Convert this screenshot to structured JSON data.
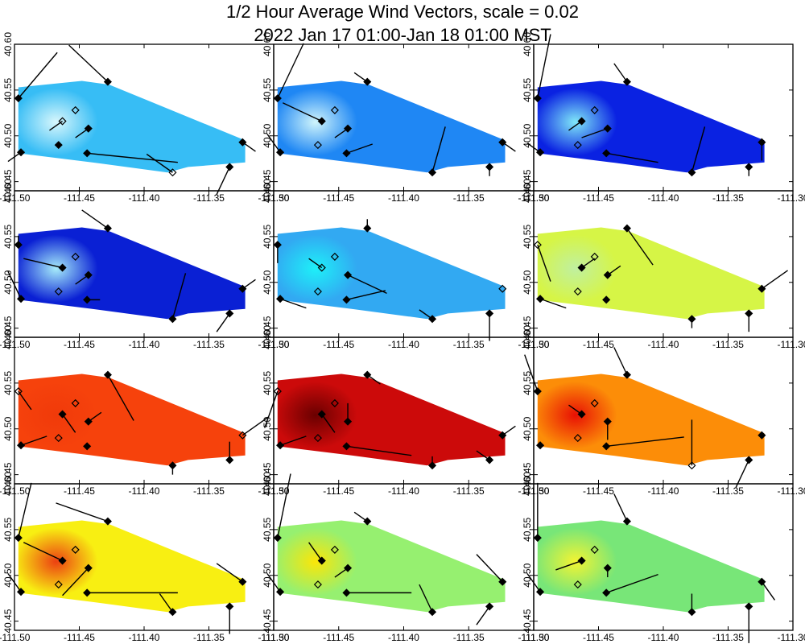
{
  "title": {
    "line1": "1/2 Hour Average Wind Vectors, scale =  0.02",
    "line2": "2022 Jan 17 01:00-Jan 18 01:00 MST"
  },
  "chart_data": {
    "type": "small-multiples-map",
    "rows": 4,
    "cols": 3,
    "xlim": [
      -111.5,
      -111.3
    ],
    "ylim": [
      40.44,
      40.6
    ],
    "xticks": [
      -111.5,
      -111.45,
      -111.4,
      -111.35,
      -111.3
    ],
    "xtick_labels": [
      "-111.50",
      "-111.45",
      "-111.40",
      "-111.35",
      "-111.30"
    ],
    "yticks": [
      40.45,
      40.5,
      40.55,
      40.6
    ],
    "ytick_labels": [
      "40.45",
      "40.50",
      "40.55",
      "40.60"
    ],
    "stations": [
      {
        "lon": -111.497,
        "lat": 40.541
      },
      {
        "lon": -111.495,
        "lat": 40.482
      },
      {
        "lon": -111.463,
        "lat": 40.516
      },
      {
        "lon": -111.466,
        "lat": 40.49
      },
      {
        "lon": -111.453,
        "lat": 40.528
      },
      {
        "lon": -111.443,
        "lat": 40.508
      },
      {
        "lon": -111.444,
        "lat": 40.481
      },
      {
        "lon": -111.428,
        "lat": 40.559
      },
      {
        "lon": -111.378,
        "lat": 40.46
      },
      {
        "lon": -111.334,
        "lat": 40.466
      },
      {
        "lon": -111.324,
        "lat": 40.493
      }
    ],
    "panels": [
      {
        "fill": "#37bdf5",
        "hot": "#d8f7fc",
        "filled": [
          1,
          1,
          0,
          1,
          0,
          1,
          1,
          1,
          0,
          1,
          1
        ],
        "vectors": [
          [
            0.03,
            0.05
          ],
          [
            -0.01,
            -0.01
          ],
          [
            -0.01,
            -0.01
          ],
          [
            0,
            0
          ],
          [
            0,
            0
          ],
          [
            -0.01,
            -0.01
          ],
          [
            0.07,
            -0.01
          ],
          [
            -0.03,
            0.04
          ],
          [
            -0.02,
            0.02
          ],
          [
            -0.01,
            -0.03
          ],
          [
            0.01,
            -0.01
          ]
        ]
      },
      {
        "fill": "#1f87f4",
        "hot": "#d0f5fb",
        "filled": [
          1,
          1,
          1,
          0,
          0,
          1,
          1,
          1,
          1,
          1,
          1
        ],
        "vectors": [
          [
            0.02,
            0.06
          ],
          [
            -0.01,
            0.02
          ],
          [
            -0.03,
            0.02
          ],
          [
            0,
            0
          ],
          [
            0,
            0
          ],
          [
            -0.01,
            -0.01
          ],
          [
            0.02,
            0.01
          ],
          [
            -0.01,
            0.01
          ],
          [
            0.01,
            0.05
          ],
          [
            0,
            -0.01
          ],
          [
            0.01,
            -0.01
          ]
        ]
      },
      {
        "fill": "#0a22e2",
        "hot": "#80e8f8",
        "filled": [
          1,
          1,
          1,
          0,
          0,
          1,
          1,
          1,
          1,
          1,
          1
        ],
        "vectors": [
          [
            0.01,
            0.07
          ],
          [
            -0.01,
            0.01
          ],
          [
            -0.01,
            -0.01
          ],
          [
            0,
            0
          ],
          [
            0,
            0
          ],
          [
            -0.02,
            -0.01
          ],
          [
            0.04,
            -0.01
          ],
          [
            -0.01,
            0.02
          ],
          [
            0.01,
            0.05
          ],
          [
            0,
            -0.01
          ],
          [
            0,
            -0.02
          ]
        ]
      },
      {
        "fill": "#0a20d4",
        "hot": "#a6ecfa",
        "filled": [
          1,
          1,
          1,
          0,
          0,
          1,
          1,
          1,
          1,
          1,
          1
        ],
        "vectors": [
          [
            0,
            0.01
          ],
          [
            -0.01,
            0.03
          ],
          [
            -0.03,
            0.01
          ],
          [
            0,
            0
          ],
          [
            0,
            0
          ],
          [
            -0.01,
            -0.01
          ],
          [
            0.01,
            0
          ],
          [
            -0.02,
            0.02
          ],
          [
            0.01,
            0.05
          ],
          [
            -0.01,
            -0.02
          ],
          [
            0.01,
            0.01
          ]
        ]
      },
      {
        "fill": "#32a9f2",
        "hot": "#1ef0f8",
        "filled": [
          1,
          1,
          0,
          0,
          0,
          1,
          1,
          1,
          1,
          1,
          0
        ],
        "vectors": [
          [
            0,
            -0.02
          ],
          [
            0.02,
            -0.01
          ],
          [
            -0.01,
            0.01
          ],
          [
            0,
            0
          ],
          [
            0,
            0
          ],
          [
            0.03,
            -0.02
          ],
          [
            0.03,
            0.01
          ],
          [
            0,
            0.01
          ],
          [
            -0.01,
            0.01
          ],
          [
            0,
            -0.03
          ],
          [
            0,
            0
          ]
        ]
      },
      {
        "fill": "#d6f546",
        "hot": "#c0f0a0",
        "filled": [
          0,
          1,
          1,
          0,
          0,
          1,
          1,
          1,
          1,
          1,
          1
        ],
        "vectors": [
          [
            0.01,
            -0.04
          ],
          [
            0.02,
            -0.01
          ],
          [
            0.01,
            0.01
          ],
          [
            0,
            0
          ],
          [
            0,
            0
          ],
          [
            0.01,
            0.01
          ],
          [
            0,
            0
          ],
          [
            0.02,
            -0.04
          ],
          [
            0,
            -0.01
          ],
          [
            0,
            -0.02
          ],
          [
            0.02,
            0.02
          ]
        ]
      },
      {
        "fill": "#f6420c",
        "hot": "#f03a0a",
        "filled": [
          0,
          1,
          1,
          0,
          0,
          1,
          1,
          1,
          1,
          1,
          0
        ],
        "vectors": [
          [
            0.01,
            -0.02
          ],
          [
            0.02,
            0.01
          ],
          [
            0.01,
            -0.02
          ],
          [
            0,
            0
          ],
          [
            0,
            0
          ],
          [
            0.01,
            0.01
          ],
          [
            0,
            0
          ],
          [
            0.02,
            -0.05
          ],
          [
            0,
            -0.01
          ],
          [
            0,
            0.02
          ],
          [
            0.02,
            0.02
          ]
        ]
      },
      {
        "fill": "#cc0a0a",
        "hot": "#6a0000",
        "filled": [
          0,
          1,
          1,
          0,
          0,
          1,
          1,
          1,
          1,
          1,
          1
        ],
        "vectors": [
          [
            -0.01,
            -0.04
          ],
          [
            0.02,
            0.01
          ],
          [
            0.01,
            -0.02
          ],
          [
            0,
            0
          ],
          [
            0,
            0
          ],
          [
            0,
            0.02
          ],
          [
            0.05,
            -0.01
          ],
          [
            0.01,
            -0.01
          ],
          [
            0,
            0.01
          ],
          [
            -0.01,
            0.01
          ],
          [
            0.01,
            0.01
          ]
        ]
      },
      {
        "fill": "#fc8d08",
        "hot": "#e81004",
        "filled": [
          1,
          1,
          1,
          0,
          0,
          1,
          1,
          1,
          0,
          1,
          1
        ],
        "vectors": [
          [
            -0.01,
            0.04
          ],
          [
            0,
            0
          ],
          [
            -0.01,
            0.01
          ],
          [
            0,
            0
          ],
          [
            0,
            0
          ],
          [
            0,
            -0.02
          ],
          [
            0.06,
            0.01
          ],
          [
            -0.01,
            0.03
          ],
          [
            0,
            0.05
          ],
          [
            -0.01,
            -0.03
          ],
          [
            0,
            0
          ]
        ]
      },
      {
        "fill": "#f8ef12",
        "hot": "#ec4012",
        "filled": [
          1,
          1,
          1,
          0,
          0,
          1,
          1,
          1,
          1,
          1,
          1
        ],
        "vectors": [
          [
            0.01,
            0.06
          ],
          [
            -0.01,
            0.02
          ],
          [
            -0.03,
            0.02
          ],
          [
            0,
            0
          ],
          [
            0,
            0
          ],
          [
            -0.02,
            -0.03
          ],
          [
            0.07,
            0
          ],
          [
            -0.04,
            0.02
          ],
          [
            -0.01,
            0.02
          ],
          [
            0,
            -0.03
          ],
          [
            -0.02,
            0.02
          ]
        ]
      },
      {
        "fill": "#96f070",
        "hot": "#fbe608",
        "filled": [
          1,
          1,
          1,
          0,
          0,
          1,
          1,
          1,
          1,
          1,
          1
        ],
        "vectors": [
          [
            0.01,
            0.07
          ],
          [
            -0.01,
            0.02
          ],
          [
            -0.01,
            0.02
          ],
          [
            0,
            0
          ],
          [
            0,
            0
          ],
          [
            -0.01,
            -0.01
          ],
          [
            0.05,
            0
          ],
          [
            -0.01,
            0.01
          ],
          [
            -0.01,
            0.03
          ],
          [
            -0.01,
            -0.02
          ],
          [
            -0.02,
            0.03
          ]
        ]
      },
      {
        "fill": "#78e678",
        "hot": "#f4f432",
        "filled": [
          1,
          1,
          1,
          0,
          0,
          1,
          1,
          1,
          1,
          1,
          1
        ],
        "vectors": [
          [
            0,
            0.06
          ],
          [
            -0.01,
            0.02
          ],
          [
            -0.02,
            -0.01
          ],
          [
            0,
            0
          ],
          [
            0,
            0
          ],
          [
            0,
            -0.01
          ],
          [
            0.04,
            0.02
          ],
          [
            -0.01,
            0.03
          ],
          [
            0,
            0.02
          ],
          [
            0,
            -0.04
          ],
          [
            0.01,
            -0.02
          ]
        ]
      }
    ]
  }
}
